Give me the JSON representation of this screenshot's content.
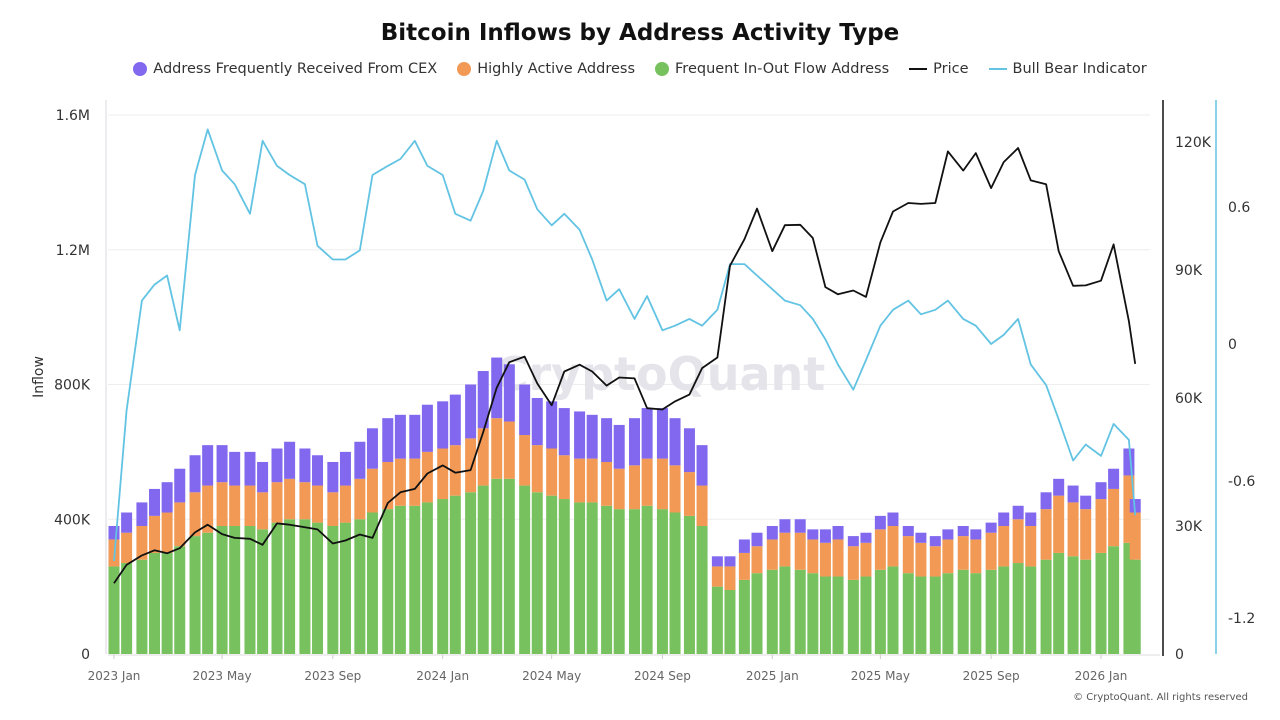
{
  "chart_data": {
    "type": "bar+line",
    "title": "Bitcoin Inflows by Address Activity Type",
    "ylabel": "Inflow",
    "ylim": [
      0,
      1600000
    ],
    "y_ticks": [
      "0",
      "400K",
      "800K",
      "1.2M",
      "1.6M"
    ],
    "y_tick_values": [
      0,
      400000,
      800000,
      1200000,
      1600000
    ],
    "y2_ticks": [
      "0",
      "30K",
      "60K",
      "90K",
      "120K"
    ],
    "y2_tick_values": [
      0,
      30000,
      60000,
      90000,
      120000
    ],
    "y2lim": [
      0,
      127000
    ],
    "y3_ticks": [
      "-1.2",
      "-0.6",
      "0",
      "0.6"
    ],
    "y3_tick_values": [
      -1.2,
      -0.6,
      0,
      0.6
    ],
    "y3lim": [
      -1.36,
      0.9
    ],
    "x_ticks": [
      "2023 Jan",
      "2023 May",
      "2023 Sep",
      "2024 Jan",
      "2024 May",
      "2024 Sep",
      "2025 Jan",
      "2025 May",
      "2025 Sep",
      "2026 Jan"
    ],
    "x_tick_dates": [
      "2023-01-01",
      "2023-05-01",
      "2023-09-01",
      "2024-01-01",
      "2024-05-01",
      "2024-09-01",
      "2025-01-01",
      "2025-05-01",
      "2025-09-01",
      "2026-01-01"
    ],
    "grid": "horizontal",
    "legend_position": "top",
    "dates": [
      "2023-01-01",
      "2023-01-15",
      "2023-02-01",
      "2023-02-15",
      "2023-03-01",
      "2023-03-15",
      "2023-04-01",
      "2023-04-15",
      "2023-05-01",
      "2023-05-15",
      "2023-06-01",
      "2023-06-15",
      "2023-07-01",
      "2023-07-15",
      "2023-08-01",
      "2023-08-15",
      "2023-09-01",
      "2023-09-15",
      "2023-10-01",
      "2023-10-15",
      "2023-11-01",
      "2023-11-15",
      "2023-12-01",
      "2023-12-15",
      "2024-01-01",
      "2024-01-15",
      "2024-02-01",
      "2024-02-15",
      "2024-03-01",
      "2024-03-15",
      "2024-04-01",
      "2024-04-15",
      "2024-05-01",
      "2024-05-15",
      "2024-06-01",
      "2024-06-15",
      "2024-07-01",
      "2024-07-15",
      "2024-08-01",
      "2024-08-15",
      "2024-09-01",
      "2024-09-15",
      "2024-10-01",
      "2024-10-15",
      "2024-11-01",
      "2024-11-15",
      "2024-12-01",
      "2024-12-15",
      "2025-01-01",
      "2025-01-15",
      "2025-02-01",
      "2025-02-15",
      "2025-03-01",
      "2025-03-15",
      "2025-04-01",
      "2025-04-15",
      "2025-05-01",
      "2025-05-15",
      "2025-06-01",
      "2025-06-15",
      "2025-07-01",
      "2025-07-15",
      "2025-08-01",
      "2025-08-15",
      "2025-09-01",
      "2025-09-15",
      "2025-10-01",
      "2025-10-15",
      "2025-11-01",
      "2025-11-15",
      "2025-12-01",
      "2025-12-15",
      "2026-01-01",
      "2026-01-15",
      "2026-02-01",
      "2026-02-08"
    ],
    "series": [
      {
        "name": "Frequent In-Out Flow Address",
        "type": "bar",
        "color": "#77c25f",
        "values": [
          260000,
          270000,
          280000,
          300000,
          300000,
          320000,
          350000,
          360000,
          380000,
          380000,
          380000,
          370000,
          390000,
          400000,
          400000,
          390000,
          380000,
          390000,
          400000,
          420000,
          430000,
          440000,
          440000,
          450000,
          460000,
          470000,
          480000,
          500000,
          520000,
          520000,
          500000,
          480000,
          470000,
          460000,
          450000,
          450000,
          440000,
          430000,
          430000,
          440000,
          430000,
          420000,
          410000,
          380000,
          200000,
          190000,
          220000,
          240000,
          250000,
          260000,
          250000,
          240000,
          230000,
          230000,
          220000,
          230000,
          250000,
          260000,
          240000,
          230000,
          230000,
          240000,
          250000,
          240000,
          250000,
          260000,
          270000,
          260000,
          280000,
          300000,
          290000,
          280000,
          300000,
          320000,
          330000,
          280000
        ]
      },
      {
        "name": "Highly Active Address",
        "type": "bar",
        "color": "#f29a55",
        "values": [
          80000,
          90000,
          100000,
          110000,
          120000,
          130000,
          130000,
          140000,
          130000,
          120000,
          120000,
          110000,
          120000,
          120000,
          110000,
          110000,
          100000,
          110000,
          120000,
          130000,
          140000,
          140000,
          140000,
          150000,
          150000,
          150000,
          160000,
          170000,
          180000,
          170000,
          150000,
          140000,
          140000,
          130000,
          130000,
          130000,
          130000,
          120000,
          130000,
          140000,
          150000,
          140000,
          130000,
          120000,
          60000,
          70000,
          80000,
          80000,
          90000,
          100000,
          110000,
          100000,
          100000,
          110000,
          100000,
          100000,
          120000,
          120000,
          110000,
          100000,
          90000,
          100000,
          100000,
          100000,
          110000,
          120000,
          130000,
          120000,
          150000,
          170000,
          160000,
          150000,
          160000,
          170000,
          200000,
          140000
        ]
      },
      {
        "name": "Address Frequently Received From CEX",
        "type": "bar",
        "color": "#8168ee",
        "values": [
          40000,
          60000,
          70000,
          80000,
          90000,
          100000,
          110000,
          120000,
          110000,
          100000,
          100000,
          90000,
          100000,
          110000,
          100000,
          90000,
          90000,
          100000,
          110000,
          120000,
          130000,
          130000,
          130000,
          140000,
          140000,
          150000,
          160000,
          170000,
          180000,
          170000,
          150000,
          140000,
          140000,
          140000,
          140000,
          130000,
          130000,
          130000,
          140000,
          150000,
          150000,
          140000,
          130000,
          120000,
          30000,
          30000,
          40000,
          40000,
          40000,
          40000,
          40000,
          30000,
          40000,
          40000,
          30000,
          30000,
          40000,
          40000,
          30000,
          30000,
          30000,
          30000,
          30000,
          30000,
          30000,
          40000,
          40000,
          40000,
          50000,
          50000,
          50000,
          40000,
          50000,
          60000,
          80000,
          40000
        ]
      },
      {
        "name": "Price",
        "type": "line",
        "axis": "right",
        "color": "#111111",
        "values": [
          16600,
          20900,
          23100,
          24300,
          23600,
          24800,
          28500,
          30300,
          28100,
          27200,
          27000,
          25600,
          30600,
          30300,
          29700,
          29200,
          25900,
          26600,
          28000,
          27200,
          35400,
          37900,
          38700,
          42300,
          44200,
          42500,
          43100,
          52000,
          62400,
          68400,
          69700,
          63400,
          58300,
          66200,
          67800,
          66200,
          62900,
          64800,
          64600,
          57600,
          57300,
          59200,
          60800,
          67000,
          69500,
          91000,
          97200,
          104400,
          94400,
          100500,
          100600,
          97500,
          86000,
          84300,
          85200,
          83700,
          96500,
          103700,
          105700,
          105500,
          105700,
          117800,
          113300,
          117400,
          109200,
          115300,
          118600,
          111000,
          110100,
          94400,
          86300,
          86400,
          87500,
          96000,
          78000,
          68000
        ]
      },
      {
        "name": "Bull Bear Indicator",
        "type": "line",
        "axis": "right-outer",
        "color": "#62c3e3",
        "values": [
          -0.95,
          -0.29,
          0.19,
          0.26,
          0.3,
          0.06,
          0.74,
          0.94,
          0.76,
          0.7,
          0.57,
          0.89,
          0.78,
          0.74,
          0.7,
          0.43,
          0.37,
          0.37,
          0.41,
          0.74,
          0.78,
          0.81,
          0.89,
          0.78,
          0.74,
          0.57,
          0.54,
          0.67,
          0.89,
          0.76,
          0.72,
          0.59,
          0.52,
          0.57,
          0.5,
          0.37,
          0.19,
          0.24,
          0.11,
          0.21,
          0.06,
          0.08,
          0.11,
          0.08,
          0.15,
          0.35,
          0.35,
          0.3,
          0.24,
          0.19,
          0.17,
          0.11,
          0.02,
          -0.09,
          -0.2,
          -0.07,
          0.08,
          0.15,
          0.19,
          0.13,
          0.15,
          0.19,
          0.11,
          0.08,
          0.0,
          0.04,
          0.11,
          -0.09,
          -0.18,
          -0.33,
          -0.51,
          -0.44,
          -0.49,
          -0.35,
          -0.42,
          -0.75
        ]
      }
    ]
  },
  "watermark": "CryptoQuant",
  "copyright": "© CryptoQuant. All rights reserved"
}
